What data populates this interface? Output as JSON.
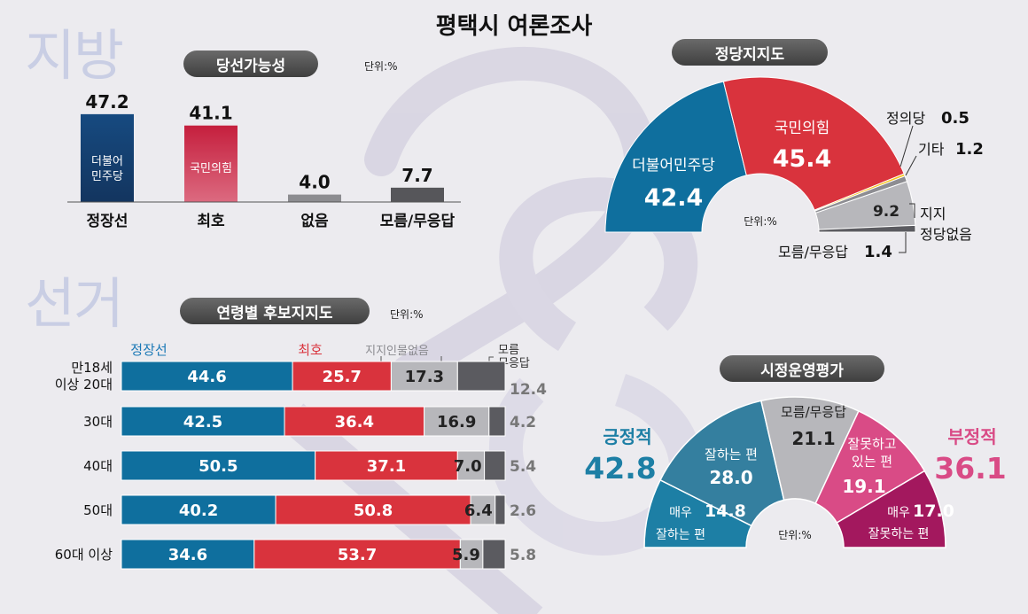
{
  "title": "평택시 여론조사",
  "deco": {
    "word1": "지방",
    "word2": "선거"
  },
  "colors": {
    "blue": "#0f6f9e",
    "navy": "#173d6e",
    "red": "#d9333d",
    "crimson": "#b81d3c",
    "lightgray": "#b7b7bb",
    "darkgray": "#5b5b60",
    "yellow": "#f6c21b",
    "pink": "#d94b86",
    "magenta": "#a3185e",
    "teal": "#1d7fa5"
  },
  "chart_data": [
    {
      "type": "bar",
      "title": "당선가능성",
      "unit": "단위:%",
      "categories": [
        "정장선",
        "최호",
        "없음",
        "모름/무응답"
      ],
      "bar_labels": [
        "더불어\n민주당",
        "국민의힘",
        "",
        ""
      ],
      "values": [
        47.2,
        41.1,
        4.0,
        7.7
      ],
      "value_labels": [
        "47.2",
        "41.1",
        "4.0",
        "7.7"
      ]
    },
    {
      "type": "pie",
      "title": "정당지지도",
      "unit": "단위:%",
      "slices": [
        {
          "label": "더불어민주당",
          "value": 42.4,
          "value_label": "42.4"
        },
        {
          "label": "국민의힘",
          "value": 45.4,
          "value_label": "45.4"
        },
        {
          "label": "정의당",
          "value": 0.5,
          "value_label": "0.5"
        },
        {
          "label": "기타",
          "value": 1.2,
          "value_label": "1.2"
        },
        {
          "label": "지지\n정당없음",
          "value": 9.2,
          "value_label": "9.2"
        },
        {
          "label": "모름/무응답",
          "value": 1.4,
          "value_label": "1.4"
        }
      ]
    },
    {
      "type": "bar",
      "stacked": true,
      "orientation": "horizontal",
      "title": "연령별 후보지지도",
      "unit": "단위:%",
      "categories": [
        "만18세\n이상 20대",
        "30대",
        "40대",
        "50대",
        "60대 이상"
      ],
      "series": [
        {
          "name": "정장선",
          "values": [
            44.6,
            42.5,
            50.5,
            40.2,
            34.6
          ],
          "labels": [
            "44.6",
            "42.5",
            "50.5",
            "40.2",
            "34.6"
          ]
        },
        {
          "name": "최호",
          "values": [
            25.7,
            36.4,
            37.1,
            50.8,
            53.7
          ],
          "labels": [
            "25.7",
            "36.4",
            "37.1",
            "50.8",
            "53.7"
          ]
        },
        {
          "name": "지지인물없음",
          "values": [
            17.3,
            16.9,
            7.0,
            6.4,
            5.9
          ],
          "labels": [
            "17.3",
            "16.9",
            "7.0",
            "6.4",
            "5.9"
          ]
        },
        {
          "name": "모름\n무응답",
          "values": [
            12.4,
            4.2,
            5.4,
            2.6,
            5.8
          ],
          "labels": [
            "12.4",
            "4.2",
            "5.4",
            "2.6",
            "5.8"
          ]
        }
      ]
    },
    {
      "type": "pie",
      "title": "시정운영평가",
      "unit": "단위:%",
      "slices": [
        {
          "label": "매우\n잘하는 편",
          "value": 14.8,
          "value_label": "14.8"
        },
        {
          "label": "잘하는 편",
          "value": 28.0,
          "value_label": "28.0"
        },
        {
          "label": "모름/무응답",
          "value": 21.1,
          "value_label": "21.1"
        },
        {
          "label": "잘못하고\n있는 편",
          "value": 19.1,
          "value_label": "19.1"
        },
        {
          "label": "매우\n잘못하는 편",
          "value": 17.0,
          "value_label": "17.0"
        }
      ],
      "groups": [
        {
          "label": "긍정적",
          "value_label": "42.8"
        },
        {
          "label": "부정적",
          "value_label": "36.1"
        }
      ]
    }
  ]
}
